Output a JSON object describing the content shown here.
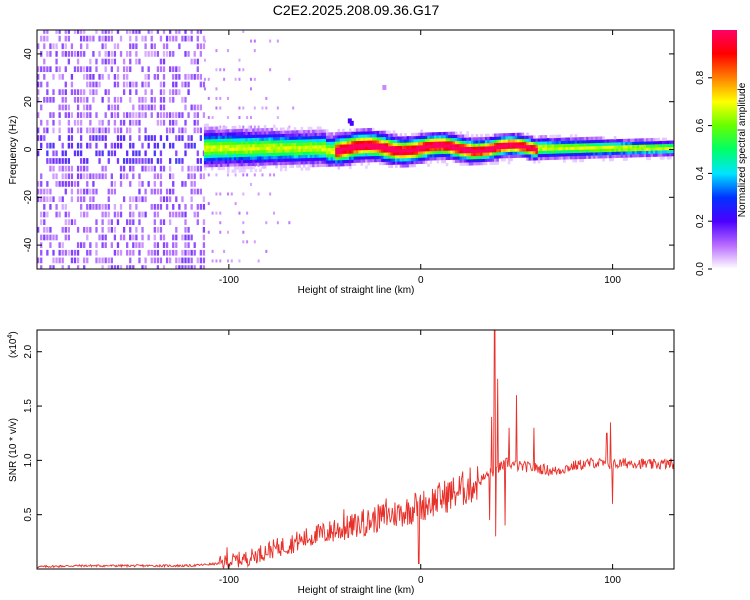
{
  "figure": {
    "title": "C2E2.2025.208.09.36.G17"
  },
  "chart_data": [
    {
      "type": "heatmap",
      "xlabel": "Height of straight line (km)",
      "ylabel": "Frequency (Hz)",
      "xlim": [
        -200,
        132
      ],
      "ylim": [
        -50,
        50
      ],
      "x_ticks": [
        -100,
        0,
        100
      ],
      "y_ticks": [
        -40,
        -20,
        0,
        20,
        40
      ],
      "colorbar": {
        "label": "Normalized spectral amplitude",
        "range": [
          0,
          1
        ],
        "ticks": [
          "0.0",
          "0.2",
          "0.4",
          "0.6",
          "0.8"
        ],
        "colors": [
          "#ffffff",
          "#b86bff",
          "#4b00ff",
          "#0033ff",
          "#00e5ff",
          "#00ff66",
          "#66ff00",
          "#ffff00",
          "#ff8000",
          "#ff0000",
          "#ff0066"
        ]
      },
      "features": [
        {
          "name": "broadband noise",
          "x_range": [
            -200,
            -113
          ],
          "y_range": [
            -50,
            50
          ],
          "level": 0.1
        },
        {
          "name": "signal band",
          "x_range": [
            -113,
            132
          ],
          "center_freq_hz": 0,
          "peak_amplitude_range": [
            0.2,
            1.0
          ]
        }
      ]
    },
    {
      "type": "line",
      "xlabel": "Height of straight line (km)",
      "ylabel": "SNR (10 * v/v)",
      "multiplier": "(x10",
      "multiplier_exp": "4",
      "multiplier_close": ")",
      "xlim": [
        -200,
        132
      ],
      "ylim": [
        0,
        2.2
      ],
      "x_ticks": [
        -100,
        0,
        100
      ],
      "y_ticks": [
        "0.5",
        "1.0",
        "1.5",
        "2.0"
      ],
      "line_color": "#e8302a",
      "series": [
        {
          "x": [
            -200,
            -180,
            -160,
            -140,
            -120,
            -105,
            -100,
            -90,
            -80,
            -70,
            -60,
            -50,
            -40,
            -30,
            -20,
            -10,
            0,
            10,
            20,
            30,
            36,
            40,
            45,
            50,
            60,
            70,
            80,
            90,
            100,
            110,
            120,
            132
          ],
          "values": [
            0.02,
            0.03,
            0.03,
            0.03,
            0.03,
            0.05,
            0.07,
            0.1,
            0.17,
            0.22,
            0.28,
            0.33,
            0.37,
            0.42,
            0.48,
            0.52,
            0.58,
            0.65,
            0.72,
            0.8,
            0.88,
            0.92,
            0.98,
            0.95,
            0.93,
            0.9,
            0.95,
            0.98,
            0.96,
            0.98,
            0.96,
            0.97
          ]
        }
      ],
      "spikes": [
        {
          "x": -101,
          "y": 0.2
        },
        {
          "x": -62,
          "y": 0.3
        },
        {
          "x": -55,
          "y": 0.35
        },
        {
          "x": -45,
          "y": 0.45
        },
        {
          "x": -40,
          "y": 0.55
        },
        {
          "x": -30,
          "y": 0.55
        },
        {
          "x": -18,
          "y": 0.65
        },
        {
          "x": -3,
          "y": 0.7
        },
        {
          "x": 37,
          "y": 1.4
        },
        {
          "x": 38.5,
          "y": 2.2
        },
        {
          "x": 40,
          "y": 1.75
        },
        {
          "x": 44,
          "y": 1.85
        },
        {
          "x": 46,
          "y": 1.3
        },
        {
          "x": 50,
          "y": 1.6
        },
        {
          "x": 59,
          "y": 1.3
        },
        {
          "x": 97,
          "y": 1.25
        },
        {
          "x": 99,
          "y": 1.35
        }
      ],
      "dips": [
        {
          "x": -1,
          "y": 0.05
        },
        {
          "x": 36,
          "y": 0.45
        },
        {
          "x": 39,
          "y": 0.3
        },
        {
          "x": 44,
          "y": 0.4
        },
        {
          "x": 100,
          "y": 0.6
        }
      ]
    }
  ]
}
